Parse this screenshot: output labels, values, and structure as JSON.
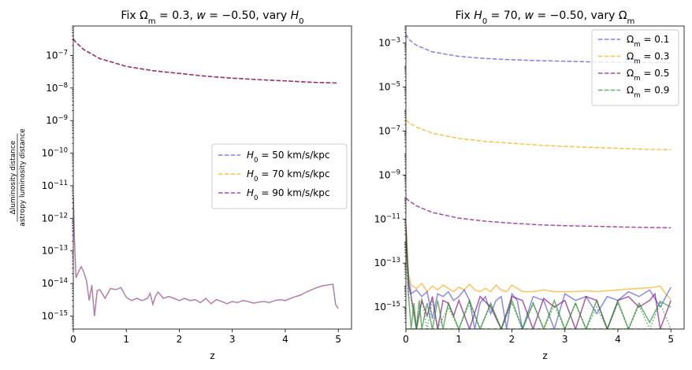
{
  "chart_data": [
    {
      "type": "line",
      "title": "Fix Ωm = 0.3, w = −0.50, vary H0",
      "title_parts": [
        "Fix Ω",
        "m",
        " = 0.3, ",
        "w",
        " = −0.50, vary ",
        "H",
        "0"
      ],
      "xlabel": "z",
      "ylabel_numerator": "Δluminosity distance",
      "ylabel_denominator": "astropy luminosity distance",
      "y_scale": "log",
      "xlim": [
        0,
        5.25
      ],
      "ylim": [
        4e-16,
        8e-07
      ],
      "x_ticks": [
        0,
        1,
        2,
        3,
        4,
        5
      ],
      "y_tick_exponents": [
        -15,
        -14,
        -13,
        -12,
        -11,
        -10,
        -9,
        -8,
        -7
      ],
      "legend_position": "center-right",
      "series": [
        {
          "name": "H0 = 50 km/s/kpc",
          "legend_parts": [
            "H",
            "0",
            " = 50 km/s/kpc"
          ],
          "color": "#4a4ae6",
          "style": "dashed",
          "x": [
            0,
            0.05,
            0.2,
            0.5,
            1,
            1.5,
            2,
            2.5,
            3,
            3.5,
            4,
            4.5,
            5
          ],
          "y": [
            3.2e-07,
            2.5e-07,
            1.5e-07,
            8e-08,
            4.6e-08,
            3.4e-08,
            2.8e-08,
            2.3e-08,
            2e-08,
            1.8e-08,
            1.65e-08,
            1.5e-08,
            1.42e-08
          ]
        },
        {
          "name": "H0 = 70 km/s/kpc",
          "legend_parts": [
            "H",
            "0",
            " = 70 km/s/kpc"
          ],
          "color": "#ffa500",
          "style": "dashed",
          "x": [
            0,
            0.05,
            0.2,
            0.5,
            1,
            1.5,
            2,
            2.5,
            3,
            3.5,
            4,
            4.5,
            5
          ],
          "y": [
            3.2e-07,
            2.5e-07,
            1.5e-07,
            8e-08,
            4.6e-08,
            3.4e-08,
            2.8e-08,
            2.3e-08,
            2e-08,
            1.8e-08,
            1.65e-08,
            1.5e-08,
            1.42e-08
          ]
        },
        {
          "name": "H0 = 90 km/s/kpc",
          "legend_parts": [
            "H",
            "0",
            " = 90 km/s/kpc"
          ],
          "color": "#800080",
          "style": "dashed",
          "x": [
            0,
            0.05,
            0.2,
            0.5,
            1,
            1.5,
            2,
            2.5,
            3,
            3.5,
            4,
            4.5,
            5
          ],
          "y": [
            3.2e-07,
            2.5e-07,
            1.5e-07,
            8e-08,
            4.6e-08,
            3.4e-08,
            2.8e-08,
            2.3e-08,
            2e-08,
            1.8e-08,
            1.65e-08,
            1.5e-08,
            1.42e-08
          ]
        },
        {
          "color": "#8b3a7a",
          "style": "solid",
          "x": [
            0,
            0.02,
            0.05,
            0.1,
            0.15,
            0.2,
            0.25,
            0.3,
            0.35,
            0.4,
            0.45,
            0.5,
            0.6,
            0.7,
            0.8,
            0.9,
            1.0,
            1.1,
            1.2,
            1.3,
            1.4,
            1.45,
            1.5,
            1.55,
            1.6,
            1.7,
            1.8,
            1.9,
            2.0,
            2.1,
            2.2,
            2.3,
            2.4,
            2.5,
            2.6,
            2.7,
            2.8,
            2.9,
            3.0,
            3.1,
            3.2,
            3.3,
            3.4,
            3.5,
            3.6,
            3.7,
            3.8,
            3.9,
            4.0,
            4.1,
            4.2,
            4.3,
            4.4,
            4.5,
            4.6,
            4.7,
            4.8,
            4.9,
            4.95,
            5.0
          ],
          "y": [
            5e-12,
            3e-13,
            1.5e-14,
            2.3e-14,
            3.3e-14,
            2.2e-14,
            1.2e-14,
            3e-15,
            9e-15,
            1e-15,
            6e-15,
            6.5e-15,
            3.5e-15,
            7e-15,
            6.5e-15,
            7.5e-15,
            3.8e-15,
            3e-15,
            3.5e-15,
            3e-15,
            3.5e-15,
            5e-15,
            2.3e-15,
            4e-15,
            5.5e-15,
            3.5e-15,
            4e-15,
            3.5e-15,
            3e-15,
            3.5e-15,
            3e-15,
            3.2e-15,
            2.6e-15,
            3.5e-15,
            2.4e-15,
            3.2e-15,
            2.8e-15,
            2.4e-15,
            2.8e-15,
            2.6e-15,
            3e-15,
            2.8e-15,
            2.5e-15,
            2.7e-15,
            2.8e-15,
            2.6e-15,
            3e-15,
            3.2e-15,
            3e-15,
            3.5e-15,
            4e-15,
            4.5e-15,
            5.5e-15,
            6.5e-15,
            7.5e-15,
            8.5e-15,
            9e-15,
            9.5e-15,
            2.3e-15,
            1.7e-15
          ]
        }
      ]
    },
    {
      "type": "line",
      "title": "Fix H0 = 70, w = −0.50, vary Ωm",
      "title_parts": [
        "Fix ",
        "H",
        "0",
        " = 70, ",
        "w",
        " = −0.50, vary Ω",
        "m"
      ],
      "xlabel": "z",
      "y_scale": "log",
      "xlim": [
        0,
        5.25
      ],
      "ylim": [
        1e-16,
        0.006
      ],
      "x_ticks": [
        0,
        1,
        2,
        3,
        4,
        5
      ],
      "y_tick_exponents": [
        -15,
        -13,
        -11,
        -9,
        -7,
        -5,
        -3
      ],
      "legend_position": "top-right",
      "series": [
        {
          "name": "Ωm = 0.1",
          "legend_parts": [
            "Ω",
            "m",
            " = 0.1"
          ],
          "color": "#4a4ae6",
          "style": "dashed",
          "x": [
            0,
            0.05,
            0.2,
            0.5,
            1,
            1.5,
            2,
            2.5,
            3,
            3.5,
            4,
            4.5,
            5
          ],
          "y": [
            0.0025,
            0.0015,
            0.0008,
            0.0004,
            0.00025,
            0.0002,
            0.000175,
            0.00016,
            0.00015,
            0.00014,
            0.000135,
            0.00013,
            0.000125
          ]
        },
        {
          "name": "Ωm = 0.3",
          "legend_parts": [
            "Ω",
            "m",
            " = 0.3"
          ],
          "color": "#ffa500",
          "style": "dashed",
          "x": [
            0,
            0.05,
            0.2,
            0.5,
            1,
            1.5,
            2,
            2.5,
            3,
            3.5,
            4,
            4.5,
            5
          ],
          "y": [
            3.2e-07,
            2.5e-07,
            1.5e-07,
            8e-08,
            4.6e-08,
            3.4e-08,
            2.8e-08,
            2.3e-08,
            2e-08,
            1.8e-08,
            1.65e-08,
            1.5e-08,
            1.42e-08
          ]
        },
        {
          "name": "Ωm = 0.5",
          "legend_parts": [
            "Ω",
            "m",
            " = 0.5"
          ],
          "color": "#800080",
          "style": "dashed",
          "x": [
            0,
            0.05,
            0.2,
            0.5,
            1,
            1.5,
            2,
            2.5,
            3,
            3.5,
            4,
            4.5,
            5
          ],
          "y": [
            9e-11,
            7e-11,
            4e-11,
            2e-11,
            1.1e-11,
            8e-12,
            6.5e-12,
            5.5e-12,
            5e-12,
            4.7e-12,
            4.4e-12,
            4.2e-12,
            4e-12
          ]
        },
        {
          "name": "Ωm = 0.9",
          "legend_parts": [
            "Ω",
            "m",
            " = 0.9"
          ],
          "color": "#228b22",
          "style": "dashed",
          "x": [
            0,
            0.05,
            0.2,
            0.5,
            1,
            2,
            3,
            4,
            5
          ],
          "y": [
            1e-16,
            1e-16,
            1e-16,
            1e-16,
            1e-16,
            1e-16,
            1e-16,
            1e-16,
            1e-16
          ]
        },
        {
          "color": "#ffa500",
          "style": "solid",
          "x": [
            0,
            0.05,
            0.1,
            0.2,
            0.3,
            0.4,
            0.5,
            0.6,
            0.7,
            0.8,
            0.9,
            1.0,
            1.1,
            1.2,
            1.3,
            1.4,
            1.5,
            1.6,
            1.7,
            1.8,
            1.9,
            2.0,
            2.2,
            2.4,
            2.6,
            2.8,
            3.0,
            3.2,
            3.4,
            3.6,
            3.8,
            4.0,
            4.2,
            4.4,
            4.6,
            4.8,
            4.9,
            5.0
          ],
          "y": [
            6e-12,
            3e-14,
            1e-14,
            7e-15,
            1.2e-14,
            5e-15,
            9e-15,
            6e-15,
            1e-14,
            7e-15,
            5e-15,
            8e-15,
            6e-15,
            1.1e-14,
            6e-15,
            5e-15,
            7e-15,
            5e-15,
            1e-14,
            6e-15,
            5e-15,
            1e-14,
            5e-15,
            5e-15,
            6e-15,
            5e-15,
            5e-15,
            5e-15,
            5.5e-15,
            5e-15,
            5.5e-15,
            6e-15,
            6.5e-15,
            7e-15,
            7.5e-15,
            9e-15,
            4e-15,
            2.2e-15
          ]
        },
        {
          "color": "#4a4ae6",
          "style": "solid",
          "x": [
            0,
            0.05,
            0.1,
            0.2,
            0.3,
            0.4,
            0.5,
            0.6,
            0.7,
            0.8,
            0.9,
            1.0,
            1.1,
            1.2,
            1.3,
            1.4,
            1.5,
            1.6,
            1.7,
            1.8,
            1.9,
            2.0,
            2.1,
            2.2,
            2.4,
            2.6,
            2.8,
            3.0,
            3.2,
            3.4,
            3.6,
            3.8,
            4.0,
            4.2,
            4.4,
            4.6,
            4.8,
            5.0
          ],
          "y": [
            8e-13,
            2e-14,
            4e-15,
            6e-15,
            3e-15,
            5e-15,
            3e-16,
            4e-15,
            3e-15,
            5e-15,
            2e-15,
            3e-15,
            6e-15,
            2e-15,
            1e-16,
            1.5e-15,
            3e-15,
            5e-16,
            2e-15,
            3e-15,
            1e-16,
            4e-15,
            2e-15,
            1e-16,
            3e-15,
            2e-15,
            1e-16,
            4e-15,
            2e-15,
            3e-15,
            5e-16,
            3e-15,
            2e-15,
            5e-15,
            3e-15,
            6e-15,
            1e-15,
            8e-15
          ]
        },
        {
          "color": "#800080",
          "style": "solid",
          "x": [
            0,
            0.05,
            0.1,
            0.2,
            0.3,
            0.4,
            0.5,
            0.6,
            0.7,
            0.8,
            0.9,
            1.0,
            1.2,
            1.4,
            1.6,
            1.8,
            2.0,
            2.2,
            2.4,
            2.6,
            2.8,
            3.0,
            3.2,
            3.4,
            3.6,
            3.8,
            4.0,
            4.2,
            4.4,
            4.6,
            4.7,
            4.8,
            5.0
          ],
          "y": [
            5e-12,
            1e-14,
            3e-15,
            1e-16,
            2e-15,
            4e-16,
            3e-15,
            1e-16,
            2e-15,
            1.5e-15,
            4e-16,
            2e-15,
            1e-16,
            3e-15,
            1e-15,
            1e-16,
            3e-15,
            2e-15,
            1e-16,
            2.5e-15,
            1e-15,
            2e-15,
            1e-16,
            3e-15,
            2e-15,
            1e-16,
            2e-15,
            3e-15,
            1e-15,
            2e-15,
            4e-15,
            1e-16,
            2e-15
          ]
        },
        {
          "color": "#228b22",
          "style": "solid",
          "x": [
            0,
            0.05,
            0.1,
            0.15,
            0.2,
            0.25,
            0.3,
            0.4,
            0.5,
            0.6,
            0.7,
            0.8,
            1.0,
            1.2,
            1.4,
            1.6,
            1.8,
            2.0,
            2.2,
            2.4,
            2.6,
            2.8,
            3.0,
            3.2,
            3.4,
            3.6,
            3.8,
            4.0,
            4.2,
            4.4,
            4.6,
            4.8,
            5.0
          ],
          "y": [
            3e-12,
            3e-15,
            1e-16,
            1.5e-15,
            1e-16,
            2e-15,
            1e-16,
            1.5e-15,
            1e-16,
            2e-15,
            1e-16,
            1.5e-15,
            1e-16,
            2e-15,
            1e-16,
            1.5e-15,
            1e-16,
            2e-15,
            1e-16,
            1.5e-15,
            1e-16,
            2e-15,
            1e-16,
            1.5e-15,
            1e-16,
            2e-15,
            1e-16,
            1.8e-15,
            1e-16,
            1.5e-15,
            2e-16,
            1.8e-15,
            1e-15
          ]
        },
        {
          "color": "#228b22",
          "style": "dotted",
          "x": [
            0,
            0.05,
            0.1,
            0.2,
            0.3,
            0.4,
            0.5,
            0.6,
            0.8,
            1.0,
            1.2,
            1.4,
            1.6,
            1.8,
            2.0,
            2.2,
            2.4,
            2.6,
            2.8,
            3.0,
            3.2,
            3.4,
            3.6,
            3.8,
            4.0,
            4.2,
            4.4,
            4.6,
            4.8,
            5.0
          ],
          "y": [
            2e-13,
            3e-15,
            2e-15,
            1e-16,
            2.5e-15,
            1e-16,
            2e-15,
            1e-16,
            1e-15,
            1e-16,
            1.5e-15,
            1e-16,
            1.2e-15,
            1e-16,
            1.5e-15,
            1e-16,
            1.5e-15,
            1e-16,
            1.2e-15,
            1e-16,
            1.5e-15,
            1e-16,
            1e-15,
            1e-16,
            1.5e-15,
            1e-16,
            1.2e-15,
            1e-16,
            1.5e-15,
            1e-16
          ]
        }
      ]
    }
  ]
}
